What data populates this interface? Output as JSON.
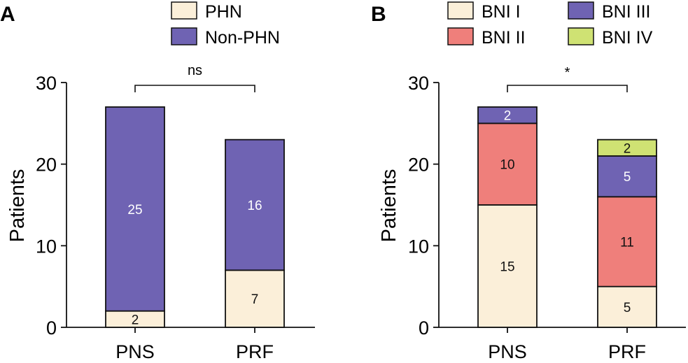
{
  "chart_data": [
    {
      "panel": "A",
      "type": "bar",
      "stacked": true,
      "categories": [
        "PNS",
        "PRF"
      ],
      "series": [
        {
          "name": "PHN",
          "values": [
            2,
            7
          ],
          "color": "#fbefd9",
          "label_color": "#111111"
        },
        {
          "name": "Non-PHN",
          "values": [
            25,
            16
          ],
          "color": "#6f63b3",
          "label_color": "#ffffff"
        }
      ],
      "ylabel": "Patients",
      "xlabel": "",
      "ylim": [
        0,
        30
      ],
      "yticks": [
        0,
        10,
        20,
        30
      ],
      "significance": "ns",
      "legend_position": "top",
      "grid": false
    },
    {
      "panel": "B",
      "type": "bar",
      "stacked": true,
      "categories": [
        "PNS",
        "PRF"
      ],
      "series": [
        {
          "name": "BNI I",
          "values": [
            15,
            5
          ],
          "color": "#fbefd9",
          "label_color": "#111111"
        },
        {
          "name": "BNI II",
          "values": [
            10,
            11
          ],
          "color": "#ef7f7b",
          "label_color": "#111111"
        },
        {
          "name": "BNI III",
          "values": [
            2,
            5
          ],
          "color": "#6f63b3",
          "label_color": "#ffffff"
        },
        {
          "name": "BNI IV",
          "values": [
            0,
            2
          ],
          "color": "#cfe273",
          "label_color": "#111111"
        }
      ],
      "ylabel": "Patients",
      "xlabel": "",
      "ylim": [
        0,
        30
      ],
      "yticks": [
        0,
        10,
        20,
        30
      ],
      "significance": "*",
      "legend_position": "top",
      "grid": false
    }
  ]
}
